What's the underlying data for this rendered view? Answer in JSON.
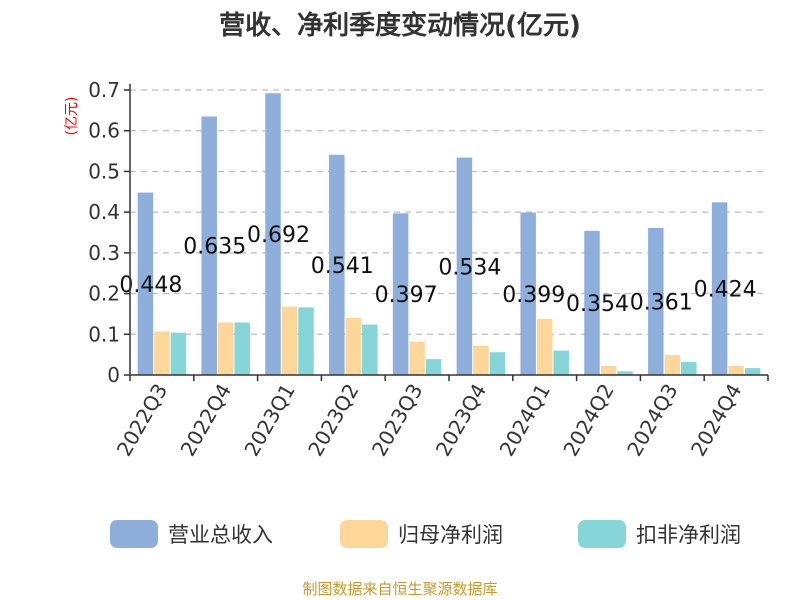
{
  "chart_data": {
    "type": "bar",
    "title": "营收、净利季度变动情况(亿元)",
    "ylabel": "(亿元)",
    "ylim": [
      0,
      0.7
    ],
    "yticks": [
      0,
      0.1,
      0.2,
      0.3,
      0.4,
      0.5,
      0.6,
      0.7
    ],
    "yticks_labels": [
      "0",
      "0.1",
      "0.2",
      "0.3",
      "0.4",
      "0.5",
      "0.6",
      "0.7"
    ],
    "grid": true,
    "legend_position": "bottom",
    "categories": [
      "2022Q3",
      "2022Q4",
      "2023Q1",
      "2023Q2",
      "2023Q3",
      "2023Q4",
      "2024Q1",
      "2024Q2",
      "2024Q3",
      "2024Q4"
    ],
    "series": [
      {
        "name": "营业总收入",
        "color": "#8eaedc",
        "values": [
          0.448,
          0.635,
          0.692,
          0.541,
          0.397,
          0.534,
          0.399,
          0.354,
          0.361,
          0.424
        ],
        "labels": [
          "0.448",
          "0.635",
          "0.692",
          "0.541",
          "0.397",
          "0.534",
          "0.399",
          "0.354",
          "0.361",
          "0.424"
        ]
      },
      {
        "name": "归母净利润",
        "color": "#fdd79a",
        "values": [
          0.107,
          0.129,
          0.168,
          0.14,
          0.082,
          0.072,
          0.138,
          0.022,
          0.049,
          0.022
        ]
      },
      {
        "name": "扣非净利润",
        "color": "#86d5d8",
        "values": [
          0.104,
          0.129,
          0.166,
          0.124,
          0.039,
          0.056,
          0.06,
          0.009,
          0.032,
          0.017
        ]
      }
    ]
  },
  "footer": {
    "source": "制图数据来自恒生聚源数据库"
  }
}
